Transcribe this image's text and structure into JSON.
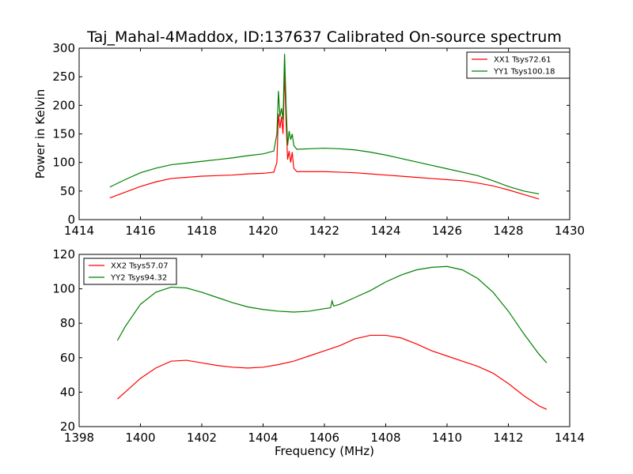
{
  "chart_data": [
    {
      "type": "line",
      "title": "Taj_Mahal-4Maddox, ID:137637 Calibrated On-source spectrum",
      "xlabel": "",
      "ylabel": "Power in Kelvin",
      "xlim": [
        1414,
        1430
      ],
      "ylim": [
        0,
        300
      ],
      "xticks": [
        1414,
        1416,
        1418,
        1420,
        1422,
        1424,
        1426,
        1428,
        1430
      ],
      "yticks": [
        0,
        50,
        100,
        150,
        200,
        250,
        300
      ],
      "grid": false,
      "legend_position": "top-right",
      "series": [
        {
          "name": "XX1 Tsys72.61",
          "color": "#ff0000",
          "x": [
            1415.0,
            1415.5,
            1416.0,
            1416.5,
            1417.0,
            1417.5,
            1418.0,
            1418.5,
            1419.0,
            1419.5,
            1420.0,
            1420.35,
            1420.45,
            1420.5,
            1420.55,
            1420.6,
            1420.65,
            1420.7,
            1420.75,
            1420.8,
            1420.85,
            1420.9,
            1420.95,
            1421.0,
            1421.1,
            1421.5,
            1422.0,
            1422.5,
            1423.0,
            1423.5,
            1424.0,
            1424.5,
            1425.0,
            1425.5,
            1426.0,
            1426.5,
            1427.0,
            1427.5,
            1428.0,
            1428.5,
            1429.0
          ],
          "y": [
            38,
            48,
            58,
            66,
            72,
            74,
            76,
            77,
            78,
            80,
            81,
            83,
            100,
            185,
            160,
            180,
            150,
            260,
            170,
            105,
            120,
            100,
            118,
            90,
            84,
            84,
            84,
            83,
            82,
            80,
            78,
            76,
            74,
            72,
            70,
            68,
            64,
            59,
            52,
            44,
            36
          ]
        },
        {
          "name": "YY1 Tsys100.18",
          "color": "#008000",
          "x": [
            1415.0,
            1415.5,
            1416.0,
            1416.5,
            1417.0,
            1417.5,
            1418.0,
            1418.5,
            1419.0,
            1419.5,
            1420.0,
            1420.35,
            1420.45,
            1420.5,
            1420.55,
            1420.6,
            1420.65,
            1420.7,
            1420.75,
            1420.8,
            1420.85,
            1420.9,
            1420.95,
            1421.0,
            1421.1,
            1421.5,
            1422.0,
            1422.5,
            1423.0,
            1423.5,
            1424.0,
            1424.5,
            1425.0,
            1425.5,
            1426.0,
            1426.5,
            1427.0,
            1427.5,
            1428.0,
            1428.5,
            1429.0
          ],
          "y": [
            57,
            70,
            82,
            90,
            96,
            99,
            102,
            105,
            108,
            112,
            115,
            120,
            150,
            225,
            180,
            195,
            175,
            290,
            200,
            130,
            155,
            140,
            150,
            130,
            123,
            124,
            125,
            124,
            122,
            118,
            113,
            107,
            101,
            95,
            89,
            83,
            77,
            68,
            58,
            50,
            45
          ]
        }
      ]
    },
    {
      "type": "line",
      "title": "",
      "xlabel": "Frequency (MHz)",
      "ylabel": "",
      "xlim": [
        1398,
        1414
      ],
      "ylim": [
        20,
        120
      ],
      "xticks": [
        1398,
        1400,
        1402,
        1404,
        1406,
        1408,
        1410,
        1412,
        1414
      ],
      "yticks": [
        20,
        40,
        60,
        80,
        100,
        120
      ],
      "grid": false,
      "legend_position": "top-left",
      "series": [
        {
          "name": "XX2 Tsys57.07",
          "color": "#ff0000",
          "x": [
            1399.25,
            1399.5,
            1400.0,
            1400.5,
            1401.0,
            1401.5,
            1402.0,
            1402.5,
            1403.0,
            1403.5,
            1404.0,
            1404.5,
            1405.0,
            1405.5,
            1406.0,
            1406.5,
            1407.0,
            1407.5,
            1408.0,
            1408.5,
            1409.0,
            1409.5,
            1410.0,
            1410.5,
            1411.0,
            1411.5,
            1412.0,
            1412.5,
            1413.0,
            1413.25
          ],
          "y": [
            36,
            40,
            48,
            54,
            58,
            58.5,
            57,
            55.5,
            54.5,
            54,
            54.5,
            56,
            58,
            61,
            64,
            67,
            71,
            73,
            73,
            71.5,
            68,
            64,
            61,
            58,
            55,
            51,
            45,
            38,
            32,
            30
          ]
        },
        {
          "name": "YY2 Tsys94.32",
          "color": "#008000",
          "x": [
            1399.25,
            1399.5,
            1400.0,
            1400.5,
            1401.0,
            1401.5,
            1402.0,
            1402.5,
            1403.0,
            1403.5,
            1404.0,
            1404.5,
            1405.0,
            1405.5,
            1406.0,
            1406.2,
            1406.25,
            1406.3,
            1406.5,
            1407.0,
            1407.5,
            1408.0,
            1408.5,
            1409.0,
            1409.5,
            1410.0,
            1410.5,
            1411.0,
            1411.5,
            1412.0,
            1412.5,
            1413.0,
            1413.25
          ],
          "y": [
            70,
            78,
            91,
            98,
            101,
            100.5,
            98,
            95,
            92,
            89.5,
            88,
            87,
            86.5,
            87,
            88.5,
            89,
            93,
            90,
            91,
            95,
            99,
            104,
            108,
            111,
            112.5,
            113,
            111,
            106,
            98,
            87,
            74,
            62,
            57
          ]
        }
      ]
    }
  ]
}
